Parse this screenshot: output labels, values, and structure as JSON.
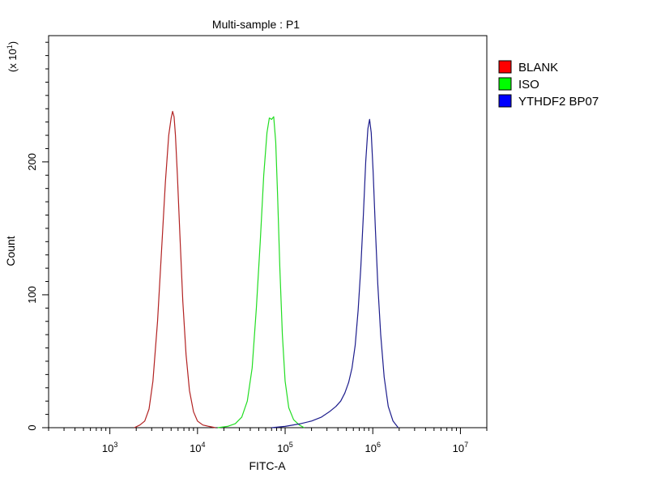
{
  "chart_data": {
    "type": "line",
    "title": "Multi-sample : P1",
    "xlabel": "FITC-A",
    "ylabel": "Count",
    "y_multiplier_label": "(x 10",
    "y_multiplier_exp": "1",
    "y_multiplier_close": ")",
    "x_scale": "log",
    "xlim": [
      200,
      20000000
    ],
    "ylim": [
      0,
      295
    ],
    "x_ticks": [
      {
        "value": 1000,
        "base": "10",
        "exp": "3"
      },
      {
        "value": 10000,
        "base": "10",
        "exp": "4"
      },
      {
        "value": 100000,
        "base": "10",
        "exp": "5"
      },
      {
        "value": 1000000,
        "base": "10",
        "exp": "6"
      },
      {
        "value": 10000000,
        "base": "10",
        "exp": "7"
      }
    ],
    "y_ticks": [
      {
        "value": 0,
        "label": "0"
      },
      {
        "value": 100,
        "label": "100"
      },
      {
        "value": 200,
        "label": "200"
      }
    ],
    "grid": false,
    "legend_position": "right",
    "series": [
      {
        "name": "BLANK",
        "color": "#b22222",
        "legend_color": "#ff0000",
        "x": [
          1900,
          2200,
          2500,
          2800,
          3100,
          3500,
          3900,
          4300,
          4700,
          5000,
          5200,
          5400,
          5600,
          5900,
          6300,
          6800,
          7400,
          8100,
          9000,
          10000,
          11500,
          13500,
          16000
        ],
        "y": [
          0,
          2,
          5,
          14,
          35,
          80,
          135,
          185,
          220,
          233,
          238,
          234,
          220,
          190,
          145,
          95,
          55,
          28,
          12,
          5,
          2,
          1,
          0
        ]
      },
      {
        "name": "ISO",
        "color": "#22dd22",
        "legend_color": "#00ff00",
        "x": [
          17000,
          22000,
          27000,
          32000,
          37000,
          42000,
          47000,
          52000,
          57000,
          62000,
          66000,
          70000,
          74000,
          78000,
          82000,
          87000,
          93000,
          100000,
          110000,
          125000,
          145000,
          165000
        ],
        "y": [
          0,
          1,
          3,
          8,
          20,
          45,
          90,
          140,
          190,
          222,
          233,
          232,
          234,
          215,
          175,
          120,
          70,
          35,
          15,
          6,
          2,
          0
        ]
      },
      {
        "name": "YTHDF2 BP07",
        "color": "#1c1c8c",
        "legend_color": "#0000ff",
        "x": [
          70000,
          100000,
          150000,
          200000,
          260000,
          320000,
          380000,
          430000,
          480000,
          530000,
          580000,
          630000,
          680000,
          730000,
          780000,
          830000,
          880000,
          920000,
          960000,
          1010000,
          1070000,
          1140000,
          1230000,
          1350000,
          1500000,
          1700000,
          1950000
        ],
        "y": [
          0,
          1,
          3,
          5,
          8,
          12,
          16,
          20,
          26,
          34,
          45,
          62,
          88,
          120,
          160,
          200,
          225,
          232,
          222,
          192,
          150,
          108,
          70,
          38,
          16,
          5,
          0
        ]
      }
    ]
  }
}
